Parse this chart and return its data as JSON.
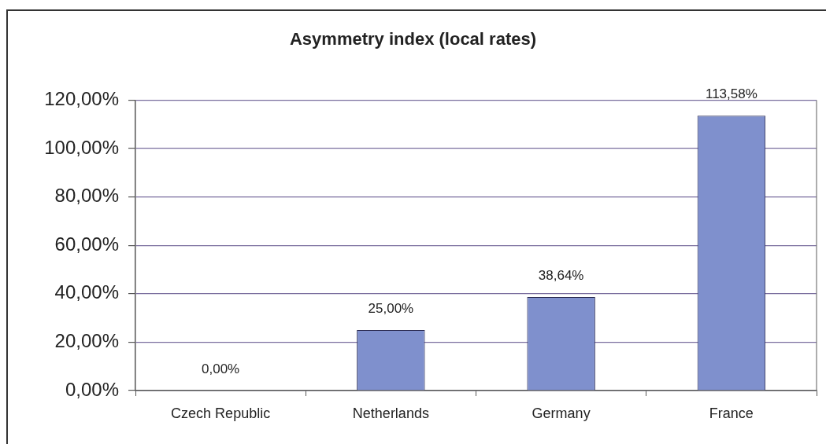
{
  "chart_data": {
    "type": "bar",
    "title": "Asymmetry index (local rates)",
    "categories": [
      "Czech Republic",
      "Netherlands",
      "Germany",
      "France"
    ],
    "values": [
      0,
      25,
      38.64,
      113.58
    ],
    "value_labels": [
      "0,00%",
      "25,00%",
      "38,64%",
      "113,58%"
    ],
    "color": "#7f90cd",
    "ylim": [
      0,
      120
    ],
    "yticks": [
      {
        "value": 0,
        "label": "0,00%"
      },
      {
        "value": 20,
        "label": "20,00%"
      },
      {
        "value": 40,
        "label": "40,00%"
      },
      {
        "value": 60,
        "label": "60,00%"
      },
      {
        "value": 80,
        "label": "80,00%"
      },
      {
        "value": 100,
        "label": "100,00%"
      },
      {
        "value": 120,
        "label": "120,00%"
      }
    ],
    "grid": "y"
  }
}
